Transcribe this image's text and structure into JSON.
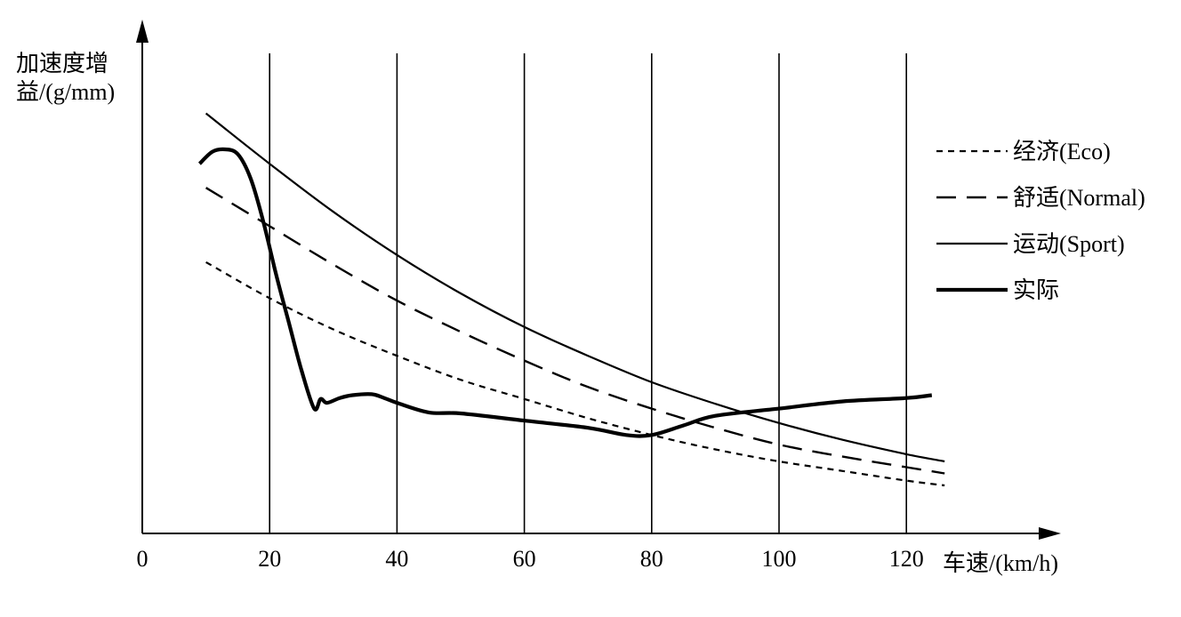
{
  "chart_data": {
    "type": "line",
    "xlabel": "车速/(km/h)",
    "ylabel_line1": "加速度增",
    "ylabel_line2": "益/(g/mm)",
    "x_ticks": [
      "0",
      "20",
      "40",
      "60",
      "80",
      "100",
      "120"
    ],
    "x_tick_values": [
      0,
      20,
      40,
      60,
      80,
      100,
      120
    ],
    "xlim": [
      0,
      128
    ],
    "ylim": [
      0,
      10
    ],
    "grid": "vertical",
    "legend_position": "right",
    "series": [
      {
        "name": "经济(Eco)",
        "style": "dotted",
        "x": [
          10,
          20,
          30,
          40,
          50,
          60,
          70,
          80,
          90,
          100,
          110,
          120,
          126
        ],
        "y": [
          5.65,
          4.9,
          4.25,
          3.7,
          3.2,
          2.8,
          2.4,
          2.05,
          1.75,
          1.5,
          1.3,
          1.1,
          1.0
        ]
      },
      {
        "name": "舒适(Normal)",
        "style": "dashed",
        "x": [
          10,
          20,
          30,
          40,
          50,
          60,
          70,
          80,
          90,
          100,
          110,
          120,
          126
        ],
        "y": [
          7.2,
          6.4,
          5.6,
          4.85,
          4.2,
          3.6,
          3.05,
          2.6,
          2.2,
          1.85,
          1.6,
          1.38,
          1.25
        ]
      },
      {
        "name": "运动(Sport)",
        "style": "thin-solid",
        "x": [
          10,
          20,
          30,
          40,
          50,
          60,
          70,
          80,
          90,
          100,
          110,
          120,
          126
        ],
        "y": [
          8.75,
          7.7,
          6.7,
          5.8,
          5.0,
          4.3,
          3.7,
          3.15,
          2.7,
          2.3,
          1.95,
          1.65,
          1.5
        ]
      },
      {
        "name": "实际",
        "style": "thick-solid",
        "x": [
          9,
          11,
          13,
          15,
          17,
          19,
          21,
          23,
          25,
          27,
          28,
          29,
          31,
          33,
          36,
          38,
          40,
          45,
          50,
          60,
          70,
          76,
          80,
          85,
          90,
          100,
          110,
          120,
          124
        ],
        "y": [
          7.7,
          7.95,
          8.0,
          7.9,
          7.4,
          6.5,
          5.4,
          4.4,
          3.4,
          2.6,
          2.8,
          2.72,
          2.82,
          2.88,
          2.9,
          2.82,
          2.72,
          2.52,
          2.5,
          2.35,
          2.2,
          2.05,
          2.05,
          2.25,
          2.45,
          2.6,
          2.75,
          2.82,
          2.88
        ]
      }
    ]
  }
}
